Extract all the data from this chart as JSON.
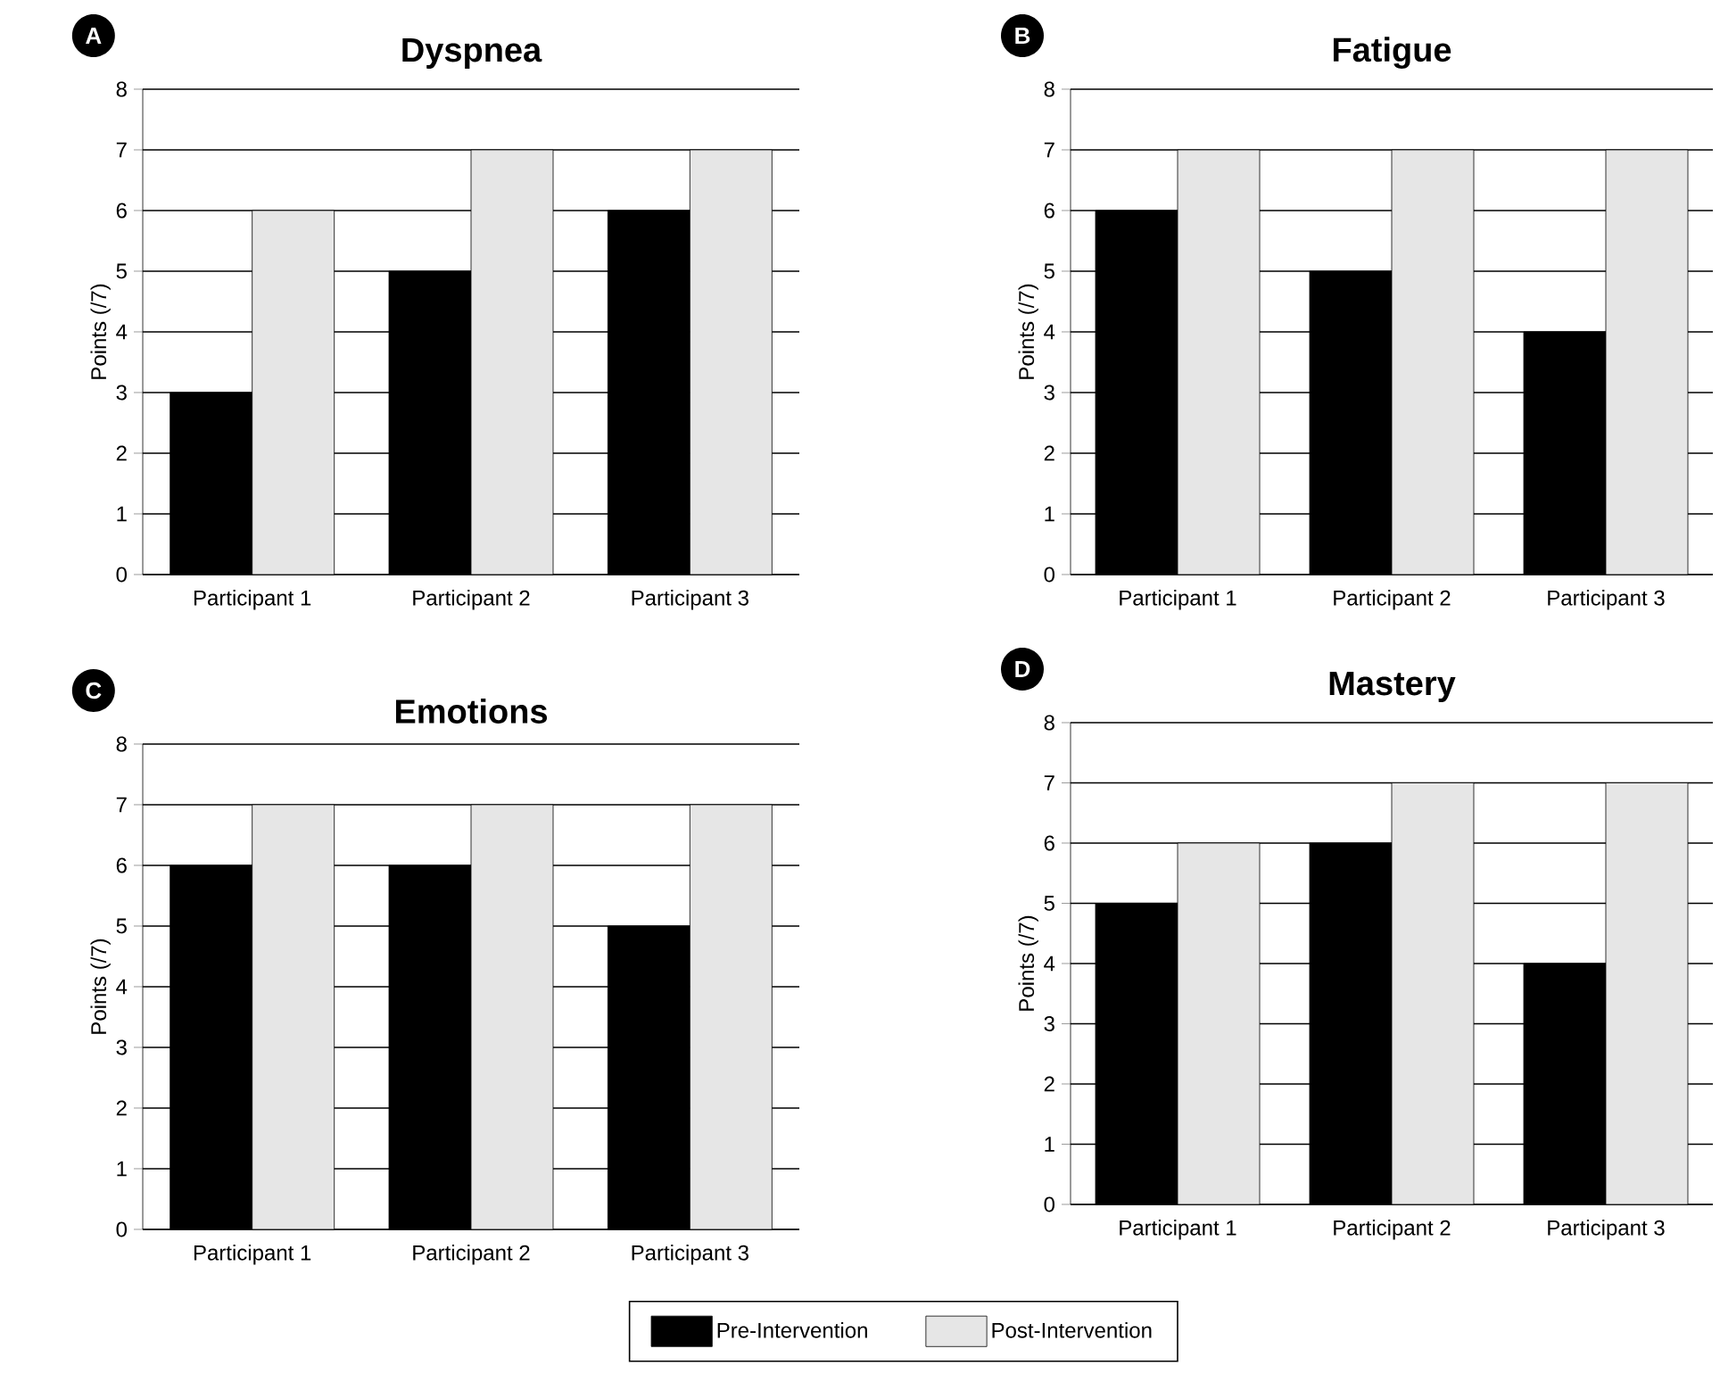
{
  "chart_data": [
    {
      "type": "bar",
      "title": "Dyspnea",
      "annotations": [
        "A"
      ],
      "ylabel": "Points (/7)",
      "categories": [
        "Participant 1",
        "Participant 2",
        "Participant 3"
      ],
      "ylim": [
        0,
        8
      ],
      "yticks": [
        0,
        1,
        2,
        3,
        4,
        5,
        6,
        7,
        8
      ],
      "grid": "y",
      "series": [
        {
          "color": "#000000",
          "values": [
            3,
            5,
            6
          ]
        },
        {
          "color": "#e6e6e6",
          "values": [
            6,
            7,
            7
          ]
        }
      ]
    },
    {
      "type": "bar",
      "title": "Fatigue",
      "annotations": [
        "B"
      ],
      "ylabel": "Points (/7)",
      "categories": [
        "Participant 1",
        "Participant 2",
        "Participant 3"
      ],
      "ylim": [
        0,
        8
      ],
      "yticks": [
        0,
        1,
        2,
        3,
        4,
        5,
        6,
        7,
        8
      ],
      "grid": "y",
      "series": [
        {
          "color": "#000000",
          "values": [
            6,
            5,
            4
          ]
        },
        {
          "color": "#e6e6e6",
          "values": [
            7,
            7,
            7
          ]
        }
      ]
    },
    {
      "type": "bar",
      "title": "Emotions",
      "annotations": [
        "C"
      ],
      "ylabel": "Points (/7)",
      "categories": [
        "Participant 1",
        "Participant 2",
        "Participant 3"
      ],
      "ylim": [
        0,
        8
      ],
      "yticks": [
        0,
        1,
        2,
        3,
        4,
        5,
        6,
        7,
        8
      ],
      "grid": "y",
      "series": [
        {
          "color": "#000000",
          "values": [
            6,
            6,
            5
          ]
        },
        {
          "color": "#e6e6e6",
          "values": [
            7,
            7,
            7
          ]
        }
      ]
    },
    {
      "type": "bar",
      "title": "Mastery",
      "annotations": [
        "D"
      ],
      "ylabel": "Points (/7)",
      "categories": [
        "Participant 1",
        "Participant 2",
        "Participant 3"
      ],
      "ylim": [
        0,
        8
      ],
      "yticks": [
        0,
        1,
        2,
        3,
        4,
        5,
        6,
        7,
        8
      ],
      "grid": "y",
      "legend": "bottom",
      "series": [
        {
          "name": "Pre-Intervention",
          "color": "#000000",
          "values": [
            5,
            6,
            4
          ]
        },
        {
          "name": "Post-Intervention",
          "color": "#e6e6e6",
          "values": [
            6,
            7,
            7
          ]
        }
      ]
    }
  ]
}
